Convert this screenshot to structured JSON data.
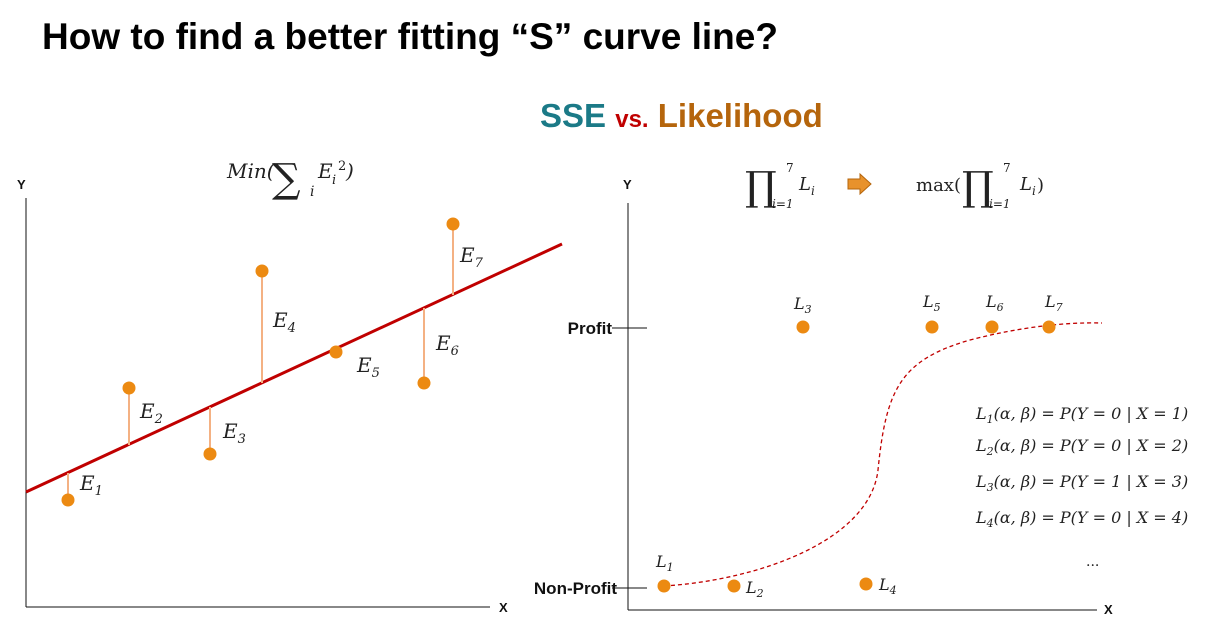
{
  "header": {
    "title": "How to find a better fitting “S” curve line?",
    "subtitle_sse": "SSE",
    "subtitle_vs": "vs.",
    "subtitle_likelihood": "Likelihood"
  },
  "colors": {
    "sse": "#1b7a87",
    "vs": "#c00000",
    "likelihood": "#b5650c",
    "regression_line": "#c00000",
    "point": "#ec8a12",
    "residual": "#f4b183",
    "s_curve": "#c00000"
  },
  "left_panel": {
    "formula": "Min(∑ᵢ Eᵢ²)",
    "y_axis_label": "Y",
    "x_axis_label": "X",
    "residual_labels": [
      "E1",
      "E2",
      "E3",
      "E4",
      "E5",
      "E6",
      "E7"
    ]
  },
  "right_panel": {
    "formula_product": "∏ᵢ₌₁⁷ Lᵢ",
    "arrow_icon": "right-arrow-icon",
    "formula_max": "max(∏ᵢ₌₁⁷ Lᵢ)",
    "y_axis_label": "Y",
    "x_axis_label": "X",
    "y_tick_profit": "Profit",
    "y_tick_nonprofit": "Non-Profit",
    "point_labels": [
      "L1",
      "L2",
      "L3",
      "L4",
      "L5",
      "L6",
      "L7"
    ],
    "likelihood_equations": [
      "L1(α, β) = P(Y = 0 | X = 1)",
      "L2(α, β) = P(Y = 0 | X = 2)",
      "L3(α, β) = P(Y = 1 | X = 3)",
      "L4(α, β) = P(Y = 0 | X = 4)"
    ],
    "ellipsis": "..."
  }
}
